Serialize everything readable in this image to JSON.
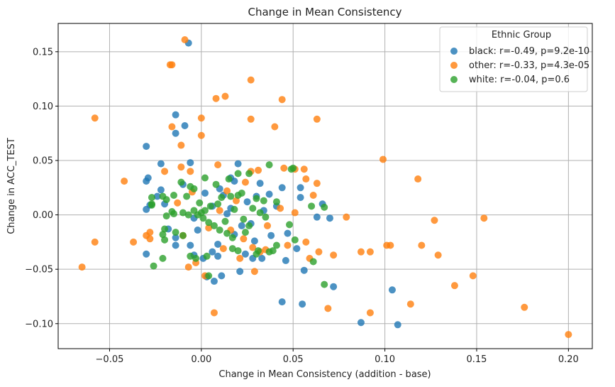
{
  "chart_data": {
    "type": "scatter",
    "title": "Change in Mean Consistency",
    "xlabel": "Change in Mean Consistency (addition - base)",
    "ylabel": "Change in ACC_TEST",
    "xlim": [
      -0.078,
      0.213
    ],
    "ylim": [
      -0.123,
      0.176
    ],
    "xticks": [
      -0.05,
      0.0,
      0.05,
      0.1,
      0.15,
      0.2
    ],
    "xtick_labels": [
      "−0.05",
      "0.00",
      "0.05",
      "0.10",
      "0.15",
      "0.20"
    ],
    "yticks": [
      -0.1,
      -0.05,
      0.0,
      0.05,
      0.1,
      0.15
    ],
    "ytick_labels": [
      "−0.10",
      "−0.05",
      "0.00",
      "0.05",
      "0.10",
      "0.15"
    ],
    "grid": true,
    "legend": {
      "title": "Ethnic Group",
      "placement": "top-right"
    },
    "series": [
      {
        "name": "black: r=-0.49, p=9.2e-10",
        "color": "#1f77b4",
        "points": [
          [
            -0.007,
            0.158
          ],
          [
            -0.014,
            0.092
          ],
          [
            -0.009,
            0.082
          ],
          [
            -0.014,
            0.075
          ],
          [
            -0.03,
            0.063
          ],
          [
            -0.006,
            0.048
          ],
          [
            -0.029,
            0.034
          ],
          [
            -0.03,
            0.031
          ],
          [
            -0.022,
            0.047
          ],
          [
            -0.01,
            0.028
          ],
          [
            -0.024,
            0.017
          ],
          [
            -0.022,
            0.023
          ],
          [
            -0.028,
            0.009
          ],
          [
            -0.03,
            0.005
          ],
          [
            -0.02,
            0.01
          ],
          [
            -0.018,
            -0.013
          ],
          [
            -0.014,
            -0.021
          ],
          [
            -0.014,
            -0.028
          ],
          [
            -0.006,
            -0.028
          ],
          [
            -0.03,
            -0.036
          ],
          [
            -0.004,
            -0.037
          ],
          [
            0.001,
            -0.04
          ],
          [
            0.006,
            -0.034
          ],
          [
            0.009,
            -0.038
          ],
          [
            0.011,
            -0.056
          ],
          [
            0.007,
            -0.061
          ],
          [
            0.003,
            -0.057
          ],
          [
            0.021,
            -0.052
          ],
          [
            0.024,
            -0.036
          ],
          [
            0.028,
            -0.04
          ],
          [
            0.033,
            -0.04
          ],
          [
            0.02,
            0.047
          ],
          [
            0.016,
            0.034
          ],
          [
            0.032,
            0.029
          ],
          [
            0.037,
            0.019
          ],
          [
            0.044,
            0.025
          ],
          [
            0.054,
            0.025
          ],
          [
            0.054,
            0.016
          ],
          [
            0.047,
            -0.017
          ],
          [
            0.052,
            -0.031
          ],
          [
            0.046,
            -0.042
          ],
          [
            0.056,
            -0.051
          ],
          [
            0.044,
            -0.08
          ],
          [
            0.055,
            -0.082
          ],
          [
            0.063,
            -0.002
          ],
          [
            0.07,
            -0.003
          ],
          [
            0.066,
            0.01
          ],
          [
            0.072,
            -0.066
          ],
          [
            0.087,
            -0.099
          ],
          [
            0.104,
            -0.069
          ],
          [
            0.107,
            -0.101
          ],
          [
            0.016,
            0.006
          ],
          [
            0.022,
            -0.01
          ],
          [
            0.012,
            0.018
          ],
          [
            0.009,
            -0.027
          ],
          [
            0.018,
            0.031
          ],
          [
            0.034,
            0.004
          ],
          [
            0.027,
            -0.008
          ],
          [
            0.002,
            0.02
          ],
          [
            0.03,
            0.017
          ],
          [
            -0.004,
            -0.003
          ],
          [
            0.014,
            0.001
          ],
          [
            0.025,
            0.012
          ],
          [
            0.018,
            -0.018
          ],
          [
            0.006,
            0.008
          ],
          [
            -0.002,
            -0.014
          ],
          [
            0.01,
            0.024
          ],
          [
            0.038,
            -0.019
          ],
          [
            0.029,
            -0.024
          ],
          [
            0.041,
            0.008
          ]
        ]
      },
      {
        "name": "other: r=-0.33, p=4.3e-05",
        "color": "#ff7f0e",
        "points": [
          [
            -0.009,
            0.161
          ],
          [
            -0.016,
            0.138
          ],
          [
            -0.017,
            0.138
          ],
          [
            0.027,
            0.124
          ],
          [
            0.013,
            0.109
          ],
          [
            0.008,
            0.107
          ],
          [
            0.044,
            0.106
          ],
          [
            0.0,
            0.089
          ],
          [
            0.027,
            0.088
          ],
          [
            0.063,
            0.088
          ],
          [
            -0.058,
            0.089
          ],
          [
            -0.016,
            0.081
          ],
          [
            0.0,
            0.073
          ],
          [
            0.04,
            0.081
          ],
          [
            -0.011,
            0.064
          ],
          [
            -0.042,
            0.031
          ],
          [
            0.051,
            0.042
          ],
          [
            0.056,
            0.042
          ],
          [
            0.045,
            0.043
          ],
          [
            0.063,
            0.029
          ],
          [
            0.057,
            0.033
          ],
          [
            0.027,
            0.04
          ],
          [
            0.009,
            0.046
          ],
          [
            -0.02,
            0.04
          ],
          [
            -0.011,
            0.044
          ],
          [
            -0.006,
            0.04
          ],
          [
            0.099,
            0.051
          ],
          [
            0.118,
            0.033
          ],
          [
            0.051,
            0.002
          ],
          [
            0.061,
            0.018
          ],
          [
            0.079,
            -0.002
          ],
          [
            0.101,
            -0.028
          ],
          [
            0.103,
            -0.028
          ],
          [
            0.12,
            -0.028
          ],
          [
            0.127,
            -0.005
          ],
          [
            0.129,
            -0.037
          ],
          [
            0.154,
            -0.003
          ],
          [
            0.148,
            -0.056
          ],
          [
            0.138,
            -0.065
          ],
          [
            0.114,
            -0.082
          ],
          [
            0.092,
            -0.09
          ],
          [
            0.069,
            -0.086
          ],
          [
            0.087,
            -0.034
          ],
          [
            0.092,
            -0.034
          ],
          [
            0.072,
            -0.037
          ],
          [
            0.064,
            -0.034
          ],
          [
            0.059,
            -0.04
          ],
          [
            0.057,
            -0.025
          ],
          [
            -0.037,
            -0.025
          ],
          [
            -0.058,
            -0.025
          ],
          [
            -0.065,
            -0.048
          ],
          [
            -0.028,
            -0.016
          ],
          [
            -0.028,
            -0.022
          ],
          [
            -0.03,
            -0.019
          ],
          [
            -0.01,
            -0.019
          ],
          [
            -0.007,
            -0.048
          ],
          [
            -0.003,
            -0.044
          ],
          [
            0.007,
            -0.09
          ],
          [
            0.002,
            -0.056
          ],
          [
            0.029,
            -0.052
          ],
          [
            0.021,
            -0.04
          ],
          [
            0.032,
            -0.034
          ],
          [
            0.035,
            -0.032
          ],
          [
            0.023,
            -0.022
          ],
          [
            0.028,
            -0.03
          ],
          [
            0.176,
            -0.085
          ],
          [
            0.2,
            -0.11
          ],
          [
            0.043,
            0.006
          ],
          [
            0.036,
            -0.01
          ],
          [
            0.019,
            0.013
          ],
          [
            0.014,
            0.022
          ],
          [
            0.024,
            0.03
          ],
          [
            0.031,
            0.041
          ],
          [
            -0.005,
            0.021
          ],
          [
            0.01,
            0.004
          ],
          [
            0.004,
            -0.012
          ],
          [
            0.016,
            -0.014
          ],
          [
            0.012,
            -0.031
          ],
          [
            -0.013,
            0.011
          ],
          [
            0.047,
            -0.028
          ]
        ]
      },
      {
        "name": "white: r=-0.04, p=0.6",
        "color": "#2ca02c",
        "points": [
          [
            0.037,
            0.046
          ],
          [
            0.05,
            0.043
          ],
          [
            0.049,
            0.042
          ],
          [
            0.026,
            0.038
          ],
          [
            0.02,
            0.038
          ],
          [
            0.015,
            0.033
          ],
          [
            0.002,
            0.034
          ],
          [
            -0.004,
            0.024
          ],
          [
            -0.008,
            0.017
          ],
          [
            -0.015,
            0.018
          ],
          [
            -0.019,
            0.014
          ],
          [
            -0.021,
            0.017
          ],
          [
            -0.027,
            0.016
          ],
          [
            -0.027,
            0.009
          ],
          [
            -0.027,
            0.01
          ],
          [
            -0.019,
            -0.001
          ],
          [
            -0.015,
            0.001
          ],
          [
            -0.01,
            0.002
          ],
          [
            -0.007,
            0.0
          ],
          [
            -0.004,
            0.004
          ],
          [
            -0.02,
            -0.013
          ],
          [
            -0.014,
            -0.016
          ],
          [
            -0.01,
            -0.019
          ],
          [
            -0.021,
            -0.018
          ],
          [
            -0.02,
            -0.023
          ],
          [
            -0.026,
            -0.047
          ],
          [
            -0.021,
            -0.04
          ],
          [
            -0.006,
            -0.038
          ],
          [
            -0.003,
            -0.04
          ],
          [
            0.003,
            -0.038
          ],
          [
            0.004,
            -0.056
          ],
          [
            0.02,
            -0.033
          ],
          [
            0.017,
            -0.031
          ],
          [
            0.03,
            -0.036
          ],
          [
            0.031,
            -0.033
          ],
          [
            0.037,
            -0.034
          ],
          [
            0.039,
            -0.033
          ],
          [
            0.041,
            -0.028
          ],
          [
            0.048,
            -0.009
          ],
          [
            0.051,
            -0.023
          ],
          [
            0.061,
            -0.043
          ],
          [
            0.067,
            -0.064
          ],
          [
            0.067,
            0.007
          ],
          [
            0.06,
            0.008
          ],
          [
            0.041,
            0.012
          ],
          [
            0.034,
            0.013
          ],
          [
            0.03,
            0.015
          ],
          [
            0.02,
            0.018
          ],
          [
            0.022,
            0.02
          ],
          [
            0.016,
            0.017
          ],
          [
            0.011,
            0.016
          ],
          [
            0.009,
            0.01
          ],
          [
            0.005,
            0.008
          ],
          [
            0.002,
            0.004
          ],
          [
            0.0,
            0.002
          ],
          [
            -0.002,
            0.0
          ],
          [
            0.001,
            -0.003
          ],
          [
            0.004,
            -0.007
          ],
          [
            0.007,
            -0.01
          ],
          [
            0.01,
            -0.014
          ],
          [
            0.014,
            -0.017
          ],
          [
            0.017,
            -0.021
          ],
          [
            0.023,
            -0.004
          ],
          [
            0.026,
            -0.01
          ],
          [
            0.028,
            0.006
          ],
          [
            0.032,
            0.002
          ],
          [
            0.035,
            -0.002
          ],
          [
            0.018,
            0.005
          ],
          [
            0.013,
            -0.006
          ],
          [
            -0.001,
            0.011
          ],
          [
            -0.006,
            0.026
          ],
          [
            -0.011,
            0.03
          ],
          [
            0.008,
            0.028
          ],
          [
            -0.016,
            0.003
          ],
          [
            0.024,
            -0.016
          ]
        ]
      }
    ]
  }
}
